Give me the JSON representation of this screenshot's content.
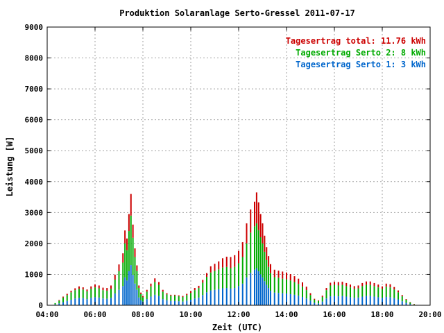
{
  "chart_data": {
    "type": "bar",
    "title": "Produktion Solaranlage Serto-Gressel 2011-07-17",
    "xlabel": "Zeit (UTC)",
    "ylabel": "Leistung [W]",
    "xlim": [
      "04:00",
      "20:00"
    ],
    "ylim": [
      0,
      9000
    ],
    "x_ticks": [
      "04:00",
      "06:00",
      "08:00",
      "10:00",
      "12:00",
      "14:00",
      "16:00",
      "18:00",
      "20:00"
    ],
    "y_ticks": [
      "0",
      "1000",
      "2000",
      "3000",
      "4000",
      "5000",
      "6000",
      "7000",
      "8000",
      "9000"
    ],
    "grid": true,
    "stacked": true,
    "legend_position": "top-right",
    "legend": [
      {
        "text": "Tagesertrag total: 11.76 kWh",
        "color": "#cc0000"
      },
      {
        "text": "Tagesertrag Serto 2: 8 kWh",
        "color": "#00aa00"
      },
      {
        "text": "Tagesertrag Serto 1: 3 kWh",
        "color": "#0066cc"
      }
    ],
    "series_colors": [
      "#0066cc",
      "#00aa00",
      "#cc0000"
    ],
    "x": [
      "04:20",
      "04:30",
      "04:40",
      "04:50",
      "05:00",
      "05:10",
      "05:20",
      "05:30",
      "05:40",
      "05:50",
      "06:00",
      "06:10",
      "06:20",
      "06:30",
      "06:40",
      "06:50",
      "07:00",
      "07:10",
      "07:15",
      "07:20",
      "07:25",
      "07:30",
      "07:35",
      "07:40",
      "07:45",
      "07:50",
      "07:55",
      "08:00",
      "08:10",
      "08:20",
      "08:30",
      "08:40",
      "08:50",
      "09:00",
      "09:10",
      "09:20",
      "09:30",
      "09:40",
      "09:50",
      "10:00",
      "10:10",
      "10:20",
      "10:30",
      "10:40",
      "10:50",
      "11:00",
      "11:10",
      "11:20",
      "11:30",
      "11:40",
      "11:50",
      "12:00",
      "12:10",
      "12:20",
      "12:30",
      "12:40",
      "12:45",
      "12:50",
      "12:55",
      "13:00",
      "13:05",
      "13:10",
      "13:15",
      "13:20",
      "13:30",
      "13:40",
      "13:50",
      "14:00",
      "14:10",
      "14:20",
      "14:30",
      "14:40",
      "14:50",
      "15:00",
      "15:10",
      "15:20",
      "15:30",
      "15:40",
      "15:50",
      "16:00",
      "16:10",
      "16:20",
      "16:30",
      "16:40",
      "16:50",
      "17:00",
      "17:10",
      "17:20",
      "17:30",
      "17:40",
      "17:50",
      "18:00",
      "18:10",
      "18:20",
      "18:30",
      "18:40",
      "18:50",
      "19:00",
      "19:10",
      "19:20"
    ],
    "series": [
      {
        "values": [
          30,
          60,
          100,
          140,
          180,
          220,
          240,
          230,
          200,
          240,
          260,
          250,
          220,
          210,
          240,
          380,
          500,
          620,
          900,
          800,
          1100,
          1300,
          980,
          700,
          500,
          250,
          160,
          120,
          200,
          280,
          340,
          300,
          200,
          160,
          140,
          140,
          130,
          120,
          150,
          180,
          220,
          250,
          330,
          420,
          480,
          500,
          520,
          550,
          560,
          540,
          560,
          620,
          700,
          900,
          1050,
          1150,
          1200,
          1100,
          1000,
          900,
          780,
          660,
          560,
          470,
          410,
          400,
          390,
          380,
          360,
          340,
          310,
          270,
          220,
          150,
          80,
          60,
          120,
          220,
          290,
          300,
          290,
          300,
          280,
          260,
          240,
          250,
          280,
          300,
          300,
          280,
          260,
          240,
          270,
          260,
          230,
          190,
          130,
          80,
          40,
          15
        ]
      },
      {
        "values": [
          40,
          90,
          150,
          190,
          240,
          270,
          290,
          280,
          250,
          290,
          320,
          300,
          270,
          260,
          290,
          450,
          600,
          760,
          1100,
          980,
          1300,
          1600,
          1200,
          860,
          610,
          310,
          200,
          140,
          240,
          330,
          410,
          360,
          240,
          190,
          170,
          170,
          160,
          150,
          180,
          220,
          270,
          310,
          400,
          500,
          580,
          610,
          640,
          670,
          680,
          660,
          680,
          740,
          860,
          1100,
          1300,
          1400,
          1450,
          1330,
          1200,
          1100,
          950,
          800,
          680,
          570,
          500,
          490,
          470,
          460,
          440,
          410,
          380,
          330,
          270,
          180,
          100,
          80,
          150,
          270,
          350,
          360,
          350,
          360,
          340,
          320,
          290,
          300,
          340,
          360,
          360,
          340,
          320,
          290,
          330,
          320,
          280,
          230,
          160,
          100,
          50,
          20
        ]
      },
      {
        "values": [
          0,
          20,
          30,
          40,
          50,
          60,
          80,
          70,
          60,
          80,
          90,
          90,
          80,
          90,
          110,
          160,
          220,
          300,
          420,
          380,
          550,
          700,
          430,
          280,
          180,
          80,
          50,
          40,
          60,
          90,
          120,
          90,
          60,
          40,
          30,
          30,
          30,
          30,
          40,
          60,
          70,
          70,
          90,
          120,
          200,
          230,
          260,
          300,
          330,
          360,
          380,
          400,
          480,
          650,
          750,
          800,
          1000,
          900,
          750,
          650,
          520,
          420,
          350,
          290,
          240,
          230,
          230,
          220,
          210,
          190,
          170,
          140,
          110,
          60,
          30,
          20,
          40,
          70,
          90,
          100,
          110,
          100,
          100,
          90,
          90,
          90,
          100,
          110,
          110,
          100,
          90,
          80,
          100,
          100,
          80,
          60,
          40,
          20,
          10,
          5
        ]
      }
    ]
  }
}
